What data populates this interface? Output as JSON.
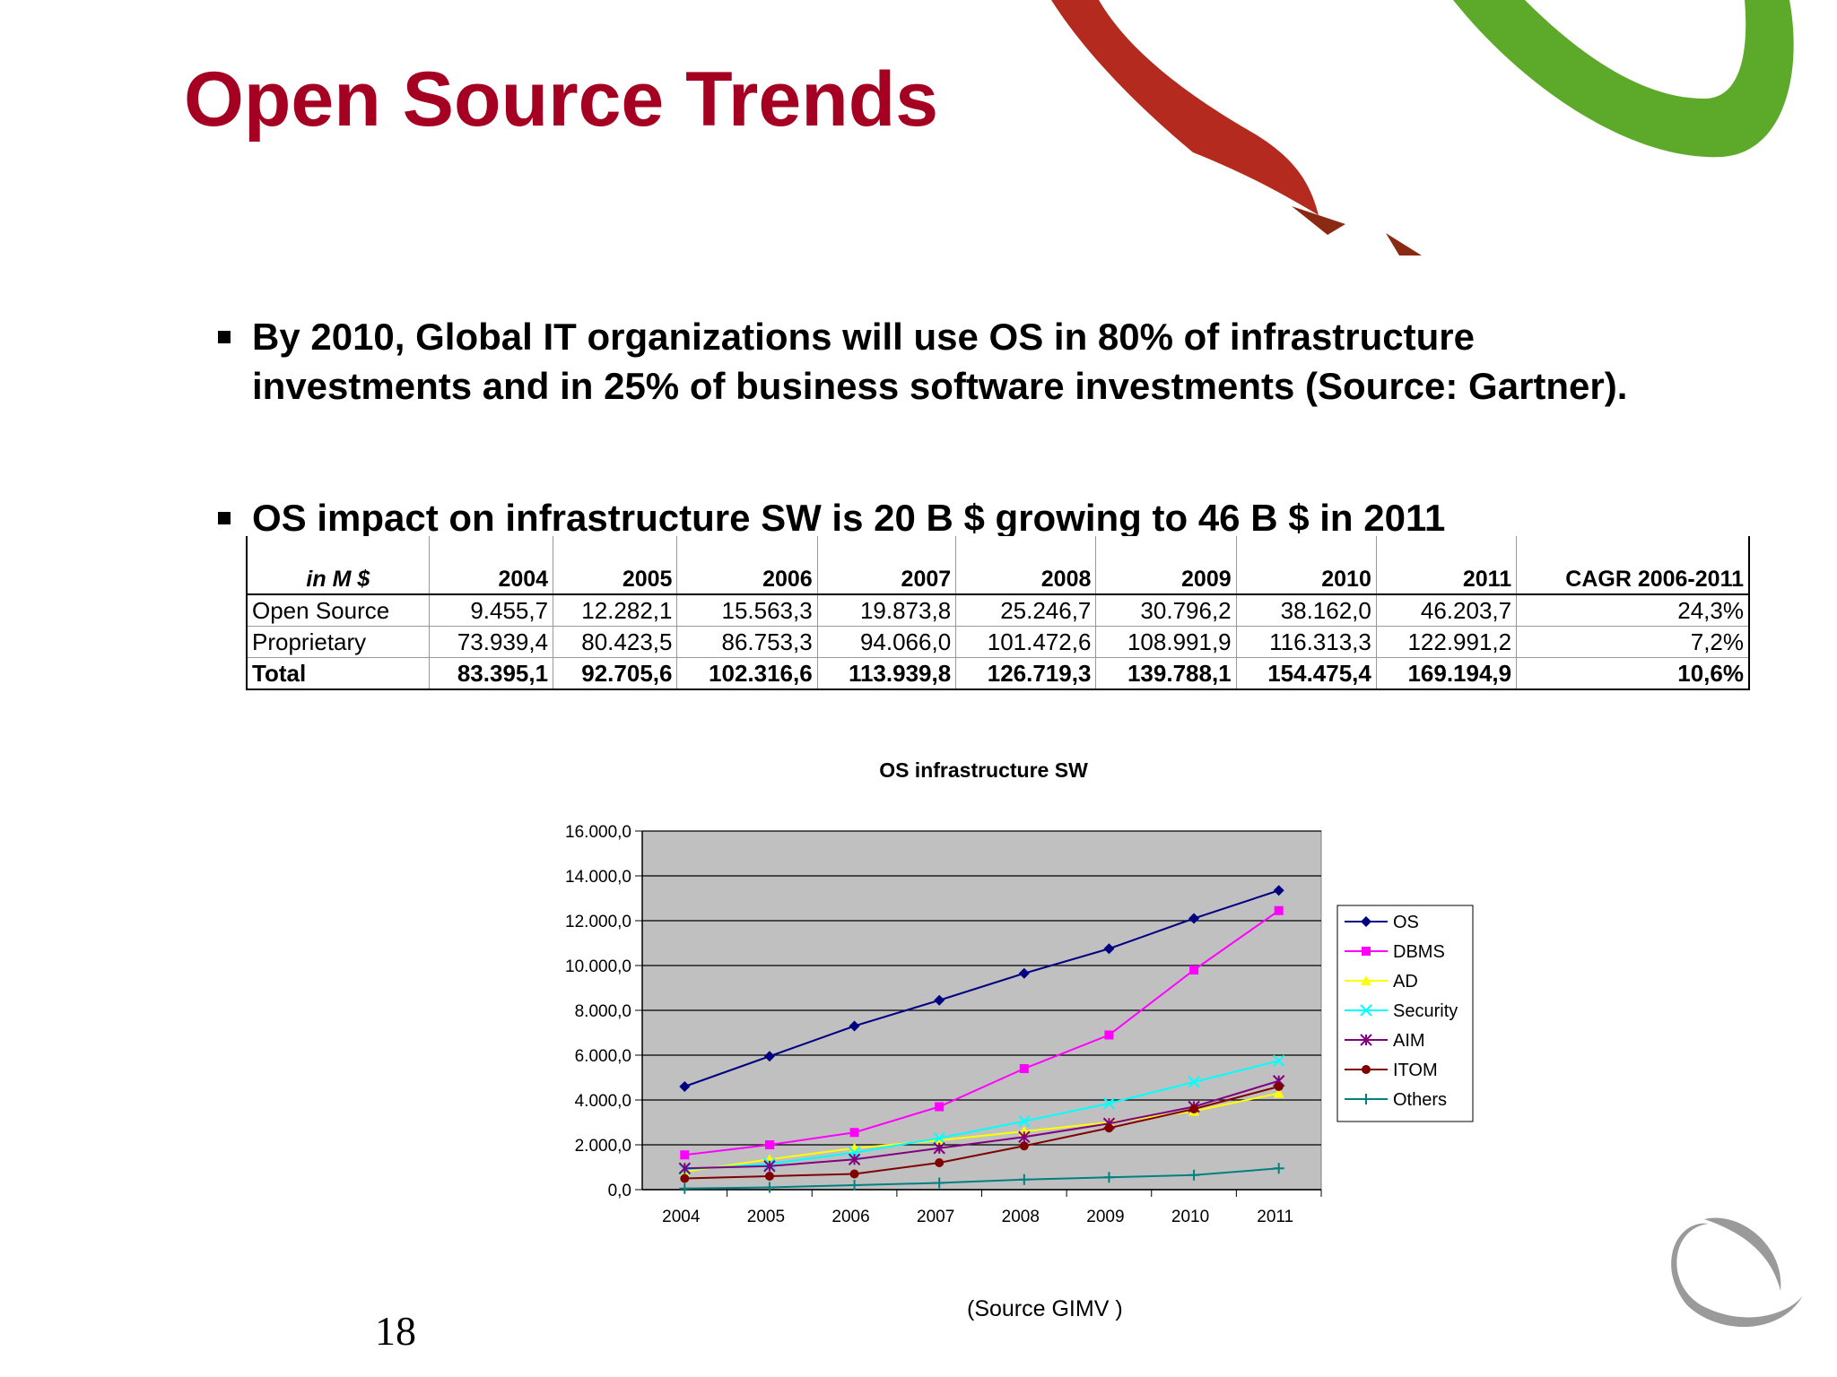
{
  "title": "Open Source Trends",
  "bullets": [
    "By 2010, Global IT organizations will use OS in 80% of infrastructure investments and in 25% of business software investments (Source: Gartner).",
    "OS impact on infrastructure SW is 20 B $ growing to 46 B $ in 2011"
  ],
  "table": {
    "header": [
      "in M $",
      "2004",
      "2005",
      "2006",
      "2007",
      "2008",
      "2009",
      "2010",
      "2011",
      "CAGR 2006-2011"
    ],
    "rows": [
      [
        "Open Source",
        "9.455,7",
        "12.282,1",
        "15.563,3",
        "19.873,8",
        "25.246,7",
        "30.796,2",
        "38.162,0",
        "46.203,7",
        "24,3%"
      ],
      [
        "Proprietary",
        "73.939,4",
        "80.423,5",
        "86.753,3",
        "94.066,0",
        "101.472,6",
        "108.991,9",
        "116.313,3",
        "122.991,2",
        "7,2%"
      ],
      [
        "Total",
        "83.395,1",
        "92.705,6",
        "102.316,6",
        "113.939,8",
        "126.719,3",
        "139.788,1",
        "154.475,4",
        "169.194,9",
        "10,6%"
      ]
    ]
  },
  "chart_data": {
    "type": "line",
    "title": "OS infrastructure SW",
    "categories": [
      "2004",
      "2005",
      "2006",
      "2007",
      "2008",
      "2009",
      "2010",
      "2011"
    ],
    "series": [
      {
        "name": "OS",
        "color": "#000080",
        "marker": "diamond",
        "values": [
          4600,
          5950,
          7300,
          8450,
          9650,
          10750,
          12100,
          13350
        ]
      },
      {
        "name": "DBMS",
        "color": "#ff00ff",
        "marker": "square",
        "values": [
          1550,
          2000,
          2550,
          3700,
          5400,
          6900,
          9800,
          12450
        ]
      },
      {
        "name": "AD",
        "color": "#ffff00",
        "marker": "triangle",
        "values": [
          800,
          1350,
          1850,
          2200,
          2600,
          3000,
          3500,
          4300
        ]
      },
      {
        "name": "Security",
        "color": "#00ffff",
        "marker": "x",
        "values": [
          900,
          1150,
          1650,
          2300,
          3050,
          3850,
          4800,
          5750
        ]
      },
      {
        "name": "AIM",
        "color": "#800080",
        "marker": "star",
        "values": [
          950,
          1050,
          1350,
          1850,
          2350,
          2950,
          3700,
          4850
        ]
      },
      {
        "name": "ITOM",
        "color": "#800000",
        "marker": "circle",
        "values": [
          500,
          600,
          700,
          1200,
          1950,
          2750,
          3600,
          4600
        ]
      },
      {
        "name": "Others",
        "color": "#008080",
        "marker": "plus",
        "values": [
          50,
          100,
          200,
          300,
          450,
          550,
          650,
          950
        ]
      }
    ],
    "ylim": [
      0,
      16000
    ],
    "yticks": [
      {
        "value": 0,
        "label": "0,0"
      },
      {
        "value": 2000,
        "label": "2.000,0"
      },
      {
        "value": 4000,
        "label": "4.000,0"
      },
      {
        "value": 6000,
        "label": "6.000,0"
      },
      {
        "value": 8000,
        "label": "8.000,0"
      },
      {
        "value": 10000,
        "label": "10.000,0"
      },
      {
        "value": 12000,
        "label": "12.000,0"
      },
      {
        "value": 14000,
        "label": "14.000,0"
      },
      {
        "value": 16000,
        "label": "16.000,0"
      }
    ],
    "grid": true,
    "plot_background": "#c0c0c0",
    "legend": "right"
  },
  "source": "(Source GIMV )",
  "page_number": "18"
}
